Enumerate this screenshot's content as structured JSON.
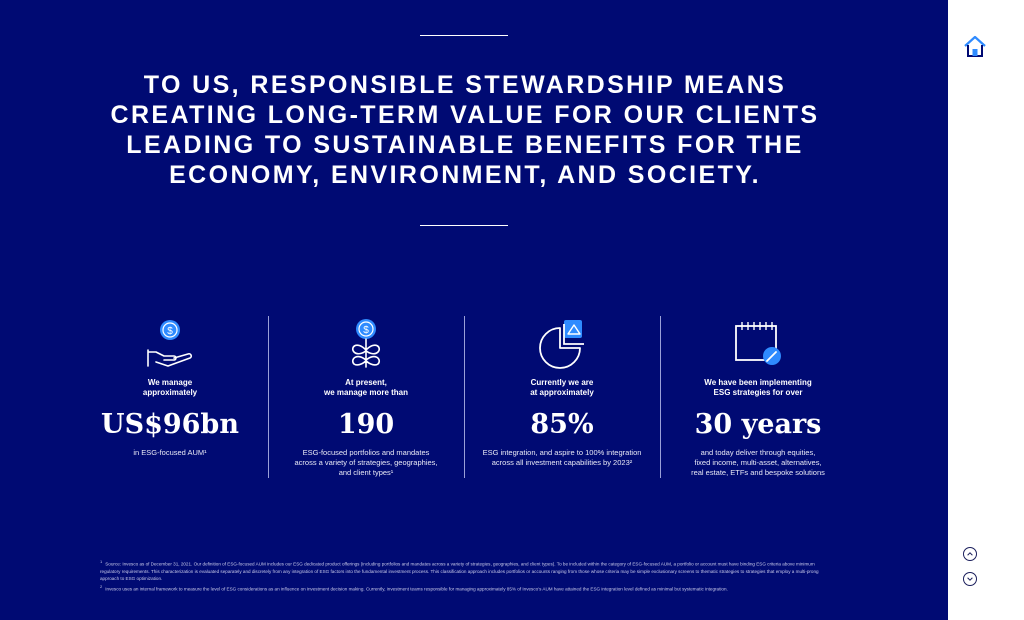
{
  "headline": {
    "lines": [
      "TO US, RESPONSIBLE STEWARDSHIP MEANS",
      "CREATING LONG-TERM VALUE FOR OUR CLIENTS",
      "LEADING TO SUSTAINABLE BENEFITS FOR THE",
      "ECONOMY, ENVIRONMENT, AND SOCIETY."
    ]
  },
  "stats": [
    {
      "icon": "hand-dollar-icon",
      "label": "We manage\napproximately",
      "value": "US$96bn",
      "desc": "in ESG-focused AUM¹"
    },
    {
      "icon": "plant-dollar-icon",
      "label": "At present,\nwe manage more than",
      "value": "190",
      "desc": "ESG-focused portfolios and mandates\nacross a variety of strategies, geographies,\nand client types¹"
    },
    {
      "icon": "pie-chart-icon",
      "label": "Currently we are\nat approximately",
      "value": "85%",
      "desc": "ESG integration, and aspire to 100% integration\nacross all investment capabilities by 2023²"
    },
    {
      "icon": "calendar-icon",
      "label": "We have been implementing\nESG strategies for over",
      "value": "30 years",
      "desc": "and today deliver through equities,\nfixed income, multi-asset, alternatives,\nreal estate, ETFs and bespoke solutions"
    }
  ],
  "footnotes": [
    {
      "marker": "1",
      "text": "Source: Invesco as of December 31, 2021. Our definition of ESG-focused AUM includes our ESG dedicated product offerings (including portfolios and mandates across a variety of strategies, geographies, and client types). To be included within the category of ESG-focused AUM, a portfolio or account must have binding ESG criteria above minimum regulatory requirements. This characterization is evaluated separately and discretely from any integration of ESG factors into the fundamental investment process. This classification approach includes portfolios or accounts ranging from those whose criteria may be simple exclusionary screens to thematic strategies to strategies that employ a multi-prong approach to ESG optimization."
    },
    {
      "marker": "2",
      "text": "Invesco uses an internal framework to measure the level of ESG considerations as an influence on investment decision making. Currently, investment teams responsible for managing approximately 85% of Invesco's AUM have attained the ESG integration level defined as minimal but systematic integration."
    }
  ],
  "nav": {
    "home_icon": "home-icon",
    "up_icon": "chevron-up-icon",
    "down_icon": "chevron-down-icon"
  },
  "colors": {
    "background": "#000a73",
    "accent": "#2f8bff",
    "text": "#ffffff"
  }
}
